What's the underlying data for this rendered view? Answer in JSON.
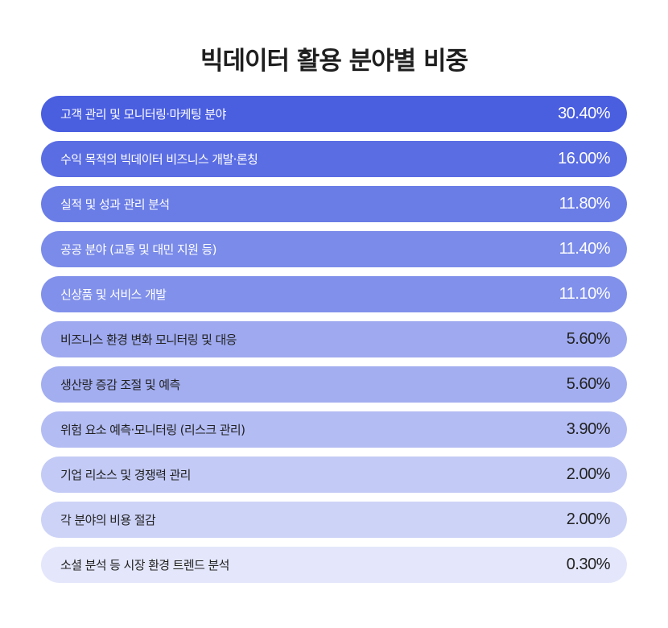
{
  "chart_data": {
    "type": "table",
    "title": "빅데이터 활용 분야별 비중",
    "categories": [
      "고객 관리 및 모니터링·마케팅 분야",
      "수익 목적의 빅데이터 비즈니스 개발·론칭",
      "실적 및 성과 관리 분석",
      "공공 분야 (교통 및 대민 지원 등)",
      "신상품 및 서비스 개발",
      "비즈니스 환경 변화 모니터링 및 대응",
      "생산량 증감 조절 및 예측",
      "위험 요소 예측·모니터링 (리스크 관리)",
      "기업 리소스 및 경쟁력 관리",
      "각 분야의 비용 절감",
      "소셜 분석 등 시장 환경 트렌드 분석"
    ],
    "values": [
      30.4,
      16.0,
      11.8,
      11.4,
      11.1,
      5.6,
      5.6,
      3.9,
      2.0,
      2.0,
      0.3
    ],
    "value_labels": [
      "30.40%",
      "16.00%",
      "11.80%",
      "11.40%",
      "11.10%",
      "5.60%",
      "5.60%",
      "3.90%",
      "2.00%",
      "2.00%",
      "0.30%"
    ],
    "row_colors": [
      "#4a5ee0",
      "#5a6de3",
      "#6a7ce6",
      "#7a8be9",
      "#8190ea",
      "#9ea9ef",
      "#a3aef0",
      "#b3bcf3",
      "#c3caf5",
      "#cdd3f7",
      "#e4e7fb"
    ],
    "text_colors": [
      "#ffffff",
      "#ffffff",
      "#ffffff",
      "#ffffff",
      "#ffffff",
      "#222222",
      "#222222",
      "#222222",
      "#222222",
      "#222222",
      "#222222"
    ]
  }
}
